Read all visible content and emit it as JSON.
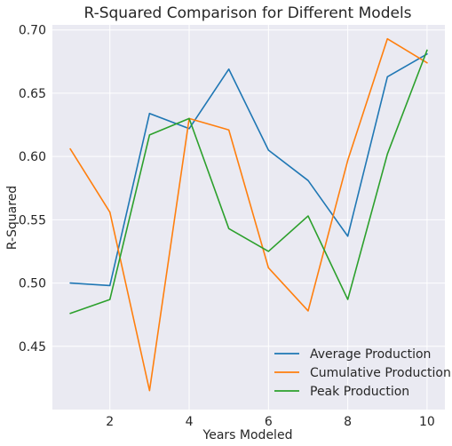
{
  "chart_data": {
    "type": "line",
    "title": "R-Squared Comparison for Different Models",
    "xlabel": "Years Modeled",
    "ylabel": "R-Squared",
    "x": [
      1,
      2,
      3,
      4,
      5,
      6,
      7,
      8,
      9,
      10
    ],
    "xlim": [
      0.55,
      10.45
    ],
    "ylim": [
      0.4,
      0.704
    ],
    "xticks": [
      2,
      4,
      6,
      8,
      10
    ],
    "xtick_labels": [
      "2",
      "4",
      "6",
      "8",
      "10"
    ],
    "yticks": [
      0.45,
      0.5,
      0.55,
      0.6,
      0.65,
      0.7
    ],
    "ytick_labels": [
      "0.45",
      "0.50",
      "0.55",
      "0.60",
      "0.65",
      "0.70"
    ],
    "grid": true,
    "background": "#EAEAF2",
    "legend_position": "lower-right",
    "series": [
      {
        "name": "Average Production",
        "color": "#1f77b4",
        "values": [
          0.5,
          0.498,
          0.634,
          0.622,
          0.669,
          0.605,
          0.581,
          0.537,
          0.663,
          0.681
        ]
      },
      {
        "name": "Cumulative Production",
        "color": "#ff7f0e",
        "values": [
          0.606,
          0.556,
          0.415,
          0.63,
          0.621,
          0.512,
          0.478,
          0.597,
          0.693,
          0.674
        ]
      },
      {
        "name": "Peak Production",
        "color": "#2ca02c",
        "values": [
          0.476,
          0.487,
          0.617,
          0.63,
          0.543,
          0.525,
          0.553,
          0.487,
          0.602,
          0.684
        ]
      }
    ]
  }
}
